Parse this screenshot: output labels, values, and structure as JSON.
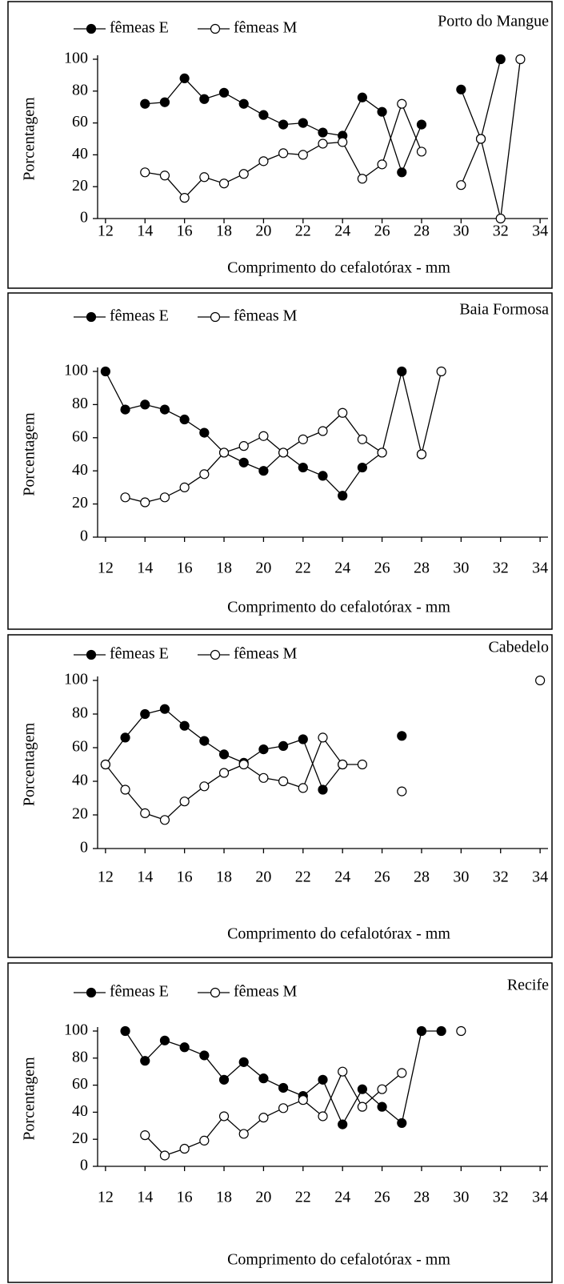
{
  "chart_data": [
    {
      "type": "line",
      "title": "Porto do Mangue",
      "x_label": "Comprimento do cefalotórax - mm",
      "y_label": "Porcentagem",
      "x": [
        14,
        15,
        16,
        17,
        18,
        19,
        20,
        21,
        22,
        23,
        24,
        25,
        26,
        27,
        28,
        29,
        30,
        31,
        32,
        33
      ],
      "series": [
        {
          "name": "fêmeas E",
          "color": "#000000",
          "values": [
            72,
            73,
            88,
            75,
            79,
            72,
            65,
            59,
            60,
            54,
            52,
            76,
            67,
            29,
            59,
            null,
            81,
            50,
            100,
            null
          ]
        },
        {
          "name": "fêmeas M",
          "color": "#ffffff",
          "values": [
            29,
            27,
            13,
            26,
            22,
            28,
            36,
            41,
            40,
            47,
            48,
            25,
            34,
            72,
            42,
            null,
            21,
            50,
            0,
            100
          ]
        }
      ],
      "xlim": [
        11.6,
        34.4
      ],
      "xticks": [
        12,
        14,
        16,
        18,
        20,
        22,
        24,
        26,
        28,
        30,
        32,
        34
      ],
      "ylim": [
        0,
        100
      ],
      "yticks": [
        0,
        20,
        40,
        60,
        80,
        100
      ]
    },
    {
      "type": "line",
      "title": "Baia Formosa",
      "x_label": "Comprimento do cefalotórax - mm",
      "y_label": "Porcentagem",
      "x": [
        12,
        13,
        14,
        15,
        16,
        17,
        18,
        19,
        20,
        21,
        22,
        23,
        24,
        25,
        26,
        27,
        28,
        29
      ],
      "series": [
        {
          "name": "fêmeas E",
          "color": "#000000",
          "values": [
            100,
            77,
            80,
            77,
            71,
            63,
            51,
            45,
            40,
            51,
            42,
            37,
            25,
            42,
            51,
            100,
            50,
            null
          ]
        },
        {
          "name": "fêmeas M",
          "color": "#ffffff",
          "values": [
            null,
            24,
            21,
            24,
            30,
            38,
            51,
            55,
            61,
            51,
            59,
            64,
            75,
            59,
            51,
            null,
            50,
            100
          ]
        }
      ],
      "xlim": [
        11.6,
        34.4
      ],
      "xticks": [
        12,
        14,
        16,
        18,
        20,
        22,
        24,
        26,
        28,
        30,
        32,
        34
      ],
      "ylim": [
        0,
        100
      ],
      "yticks": [
        0,
        20,
        40,
        60,
        80,
        100
      ]
    },
    {
      "type": "line",
      "title": "Cabedelo",
      "x_label": "Comprimento do cefalotórax - mm",
      "y_label": "Porcentagem",
      "x": [
        12,
        13,
        14,
        15,
        16,
        17,
        18,
        19,
        20,
        21,
        22,
        23,
        24,
        25,
        26,
        27,
        28,
        29,
        30,
        31,
        32,
        33,
        34
      ],
      "series": [
        {
          "name": "fêmeas E",
          "color": "#000000",
          "values": [
            50,
            66,
            80,
            83,
            73,
            64,
            56,
            51,
            59,
            61,
            65,
            35,
            50,
            null,
            null,
            67,
            null,
            null,
            null,
            null,
            null,
            null,
            null
          ]
        },
        {
          "name": "fêmeas M",
          "color": "#ffffff",
          "values": [
            50,
            35,
            21,
            17,
            28,
            37,
            45,
            50,
            42,
            40,
            36,
            66,
            50,
            50,
            null,
            34,
            null,
            null,
            null,
            null,
            null,
            null,
            100
          ]
        }
      ],
      "xlim": [
        11.6,
        34.4
      ],
      "xticks": [
        12,
        14,
        16,
        18,
        20,
        22,
        24,
        26,
        28,
        30,
        32,
        34
      ],
      "ylim": [
        0,
        100
      ],
      "yticks": [
        0,
        20,
        40,
        60,
        80,
        100
      ]
    },
    {
      "type": "line",
      "title": "Recife",
      "x_label": "Comprimento do cefalotórax - mm",
      "y_label": "Porcentagem",
      "x": [
        13,
        14,
        15,
        16,
        17,
        18,
        19,
        20,
        21,
        22,
        23,
        24,
        25,
        26,
        27,
        28,
        29,
        30
      ],
      "series": [
        {
          "name": "fêmeas E",
          "color": "#000000",
          "values": [
            100,
            78,
            93,
            88,
            82,
            64,
            77,
            65,
            58,
            52,
            64,
            31,
            57,
            44,
            32,
            100,
            100,
            null
          ]
        },
        {
          "name": "fêmeas M",
          "color": "#ffffff",
          "values": [
            null,
            23,
            8,
            13,
            19,
            37,
            24,
            36,
            43,
            49,
            37,
            70,
            44,
            57,
            69,
            null,
            null,
            100
          ]
        }
      ],
      "xlim": [
        11.6,
        34.4
      ],
      "xticks": [
        12,
        14,
        16,
        18,
        20,
        22,
        24,
        26,
        28,
        30,
        32,
        34
      ],
      "ylim": [
        0,
        100
      ],
      "yticks": [
        0,
        20,
        40,
        60,
        80,
        100
      ]
    }
  ]
}
